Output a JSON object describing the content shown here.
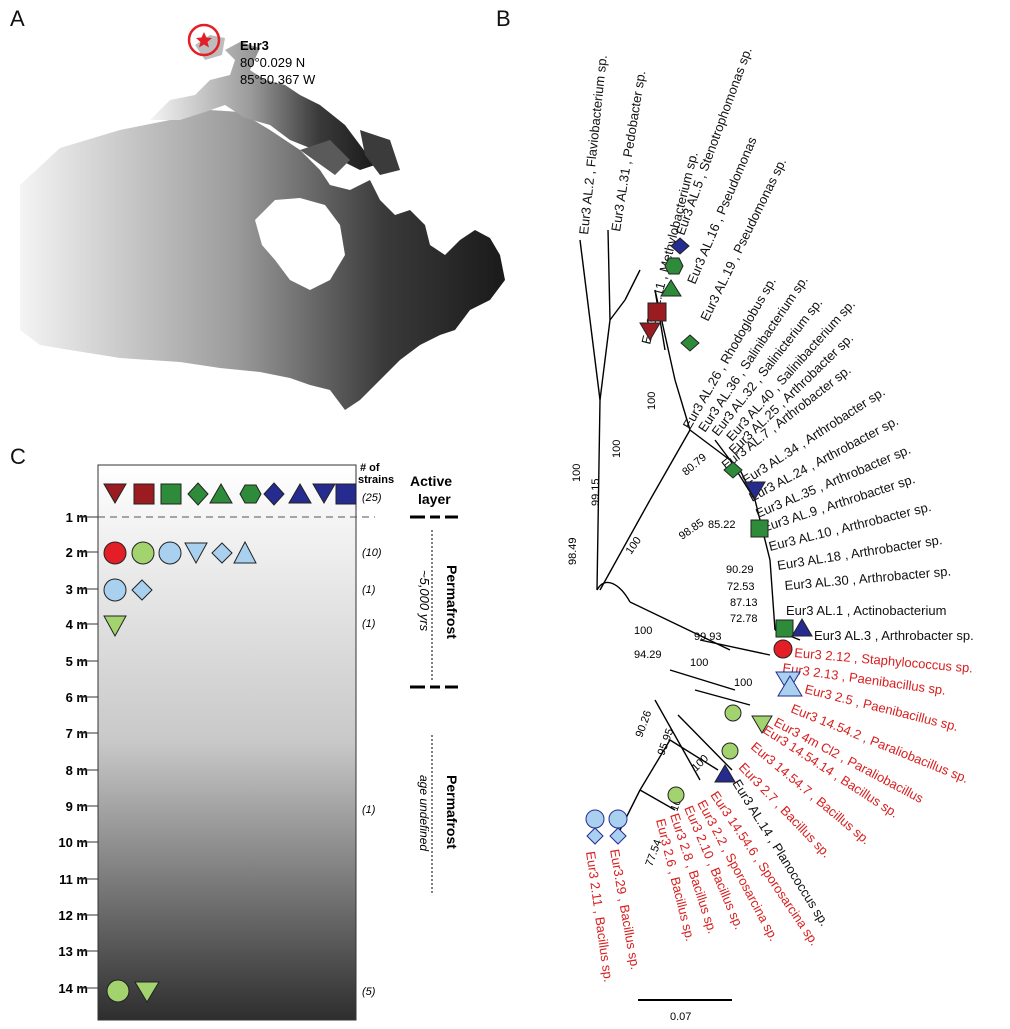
{
  "panels": {
    "a": "A",
    "b": "B",
    "c": "C"
  },
  "site": {
    "name": "Eur3",
    "lat": "80°0.029 N",
    "lon": "85°50.367 W"
  },
  "colors": {
    "red_fill": "#e41e26",
    "darkred": "#9b1c20",
    "green": "#2e8b3a",
    "navy": "#252b8f",
    "lightblue": "#a9d1ef",
    "lightgreen": "#a3d36f",
    "tree_red": "#d81e1e"
  },
  "column": {
    "strains_header_line1": "# of",
    "strains_header_line2": "strains",
    "depths": [
      "1 m",
      "2 m",
      "3 m",
      "4 m",
      "5 m",
      "6 m",
      "7 m",
      "8 m",
      "9 m",
      "10 m",
      "11 m",
      "12 m",
      "13 m",
      "14 m"
    ],
    "counts": {
      "c0": "(25)",
      "c2": "(10)",
      "c3": "(1)",
      "c4": "(1)",
      "c9": "(1)",
      "c14": "(5)"
    },
    "active_line1": "Active",
    "active_line2": "layer",
    "perma1": "Permafrost",
    "perma1_age": "~5,000 yrs",
    "perma2": "Permafrost",
    "perma2_age": "age undefined"
  },
  "tree": {
    "scale": "0.07",
    "bootstraps": [
      "98.49",
      "100",
      "99.15",
      "100",
      "100",
      "100",
      "80.79",
      "98.85",
      "85.22",
      "90.29",
      "72.53",
      "87.13",
      "72.78",
      "100",
      "99.93",
      "94.29",
      "100",
      "100",
      "90.26",
      "95.95",
      "100",
      "100",
      "77.54"
    ],
    "black_leaves": [
      "Eur3 AL.2 ,  Flaviobacterium sp.",
      "Eur3 AL.31 ,  Pedobacter sp.",
      "Eur3 AL.11 ,  Methylobacterium sp.",
      "Eur3 AL.5 ,  Stenotrophomonas sp.",
      "Eur3 AL.16 ,  Pseudomonas",
      "Eur3 AL.19 ,  Pseudomonas sp.",
      "Eur3 AL.26 ,  Rhodoglobus sp.",
      "Eur3 AL.36 ,  Salinibacterium sp.",
      "Eur3 AL.32 ,  Salinicterium sp.",
      "Eur3 AL.40 ,  Salinibacterium sp.",
      "Eur3 AL.25 ,  Arthrobacter sp.",
      "Eur3 AL.7 ,  Arthrobacter sp.",
      "Eur3 AL.34 ,  Arthrobacter sp.",
      "Eur3 AL.24 ,  Arthrobacter sp.",
      "Eur3 AL.35 ,  Arthrobacter sp.",
      "Eur3 AL.9 ,  Arthrobacter sp.",
      "Eur3 AL.10 ,  Arthrobacter sp.",
      "Eur3 AL.18 ,  Arthrobacter sp.",
      "Eur3 AL.30 ,  Arthrobacter sp.",
      "Eur3 AL.1 ,  Actinobacterium",
      "Eur3 AL.3 ,  Arthrobacter sp.",
      "Eur3 AL.14 ,  Planococcus sp."
    ],
    "red_leaves": [
      "Eur3 2.12 ,  Staphylococcus sp.",
      "Eur3 2.13 ,  Paenibacillus sp.",
      "Eur3 2.5 ,  Paenibacillus sp.",
      "Eur3 14.54.2 ,  Paraliobacillus sp.",
      "Eur3 4m Cl2 ,  Paraliobacillus",
      "Eur3 14.54.14 ,  Bacillus sp.",
      "Eur3 14.54.7 ,  Bacillus sp.",
      "Eur3 2.7 ,  Bacillus sp.",
      "Eur3 14.54.6 ,  Sporosarcina sp.",
      "Eur3 2.2 ,  Sporosarcina sp.",
      "Eur3 2.10 ,  Bacillus sp.",
      "Eur3 2.8 ,  Bacillus sp.",
      "Eur3 2.6 ,  Bacillus sp.",
      "Eur3.29 ,  Bacillus sp.",
      "Eur3 2.11 ,  Bacillus sp."
    ]
  }
}
